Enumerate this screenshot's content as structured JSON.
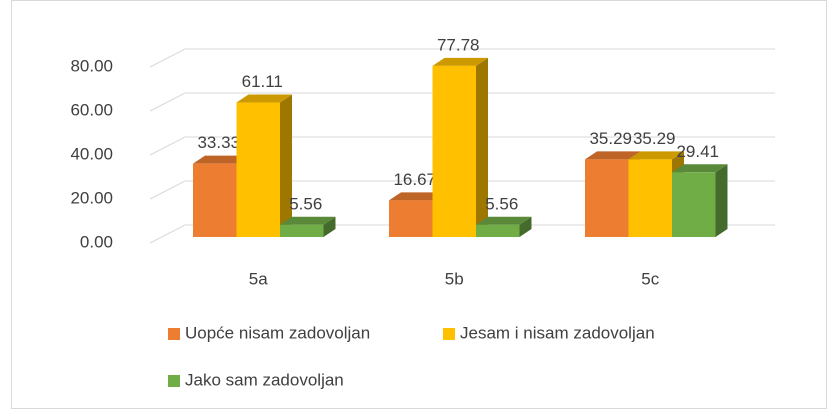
{
  "chart_data": {
    "type": "bar3d",
    "categories": [
      "5a",
      "5b",
      "5c"
    ],
    "series": [
      {
        "name": "Uopće nisam zadovoljan",
        "color": "#ED7D31",
        "values": [
          33.33,
          16.67,
          35.29
        ]
      },
      {
        "name": "Jesam i nisam zadovoljan",
        "color": "#FFC000",
        "values": [
          61.11,
          77.78,
          35.29
        ]
      },
      {
        "name": "Jako sam zadovoljan",
        "color": "#70AD47",
        "values": [
          5.56,
          5.56,
          29.41
        ]
      }
    ],
    "ylim": [
      0,
      80
    ],
    "yticks": [
      {
        "value": 0,
        "label": "0.00"
      },
      {
        "value": 20,
        "label": "20.00"
      },
      {
        "value": 40,
        "label": "40.00"
      },
      {
        "value": 60,
        "label": "60.00"
      },
      {
        "value": 80,
        "label": "80.00"
      }
    ],
    "grid": true,
    "legend": "bottom"
  }
}
